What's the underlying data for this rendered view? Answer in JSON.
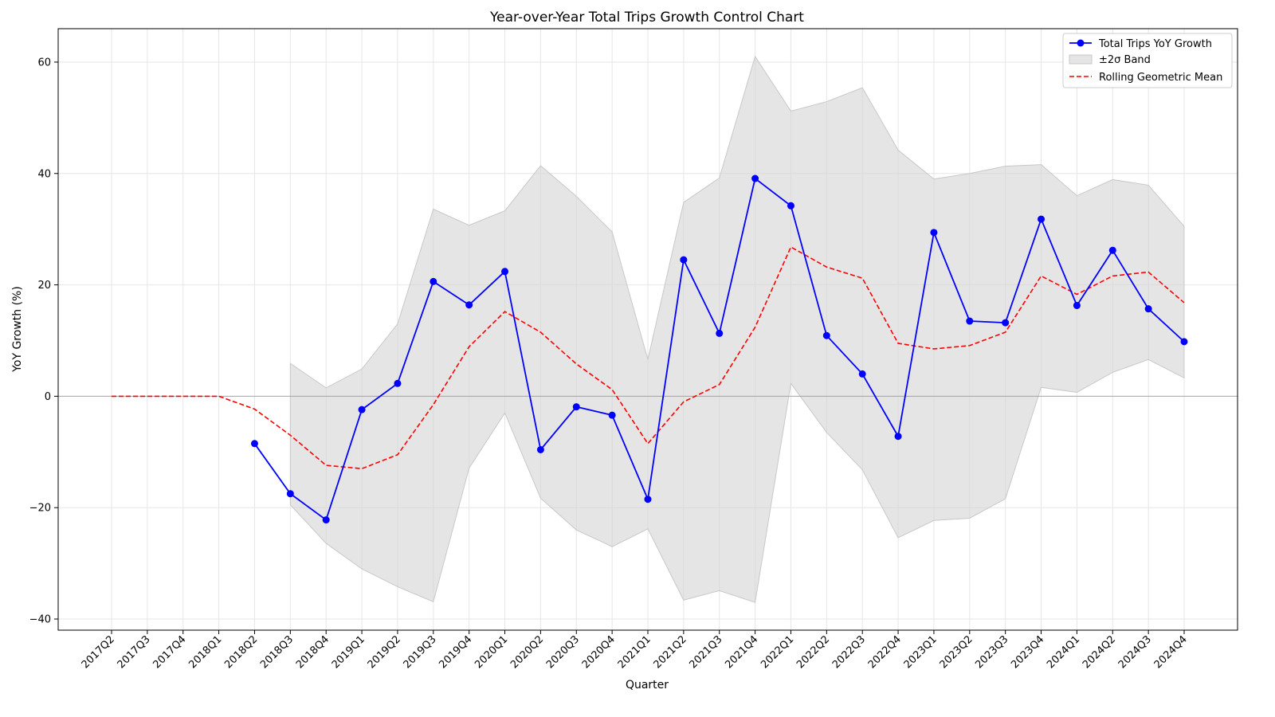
{
  "chart_data": {
    "type": "line",
    "title": "Year-over-Year Total Trips Growth Control Chart",
    "xlabel": "Quarter",
    "ylabel": "YoY Growth (%)",
    "ylim": [
      -42,
      66
    ],
    "yticks": [
      -40,
      -20,
      0,
      20,
      40,
      60
    ],
    "grid": true,
    "legend_position": "top-right",
    "categories": [
      "2017Q2",
      "2017Q3",
      "2017Q4",
      "2018Q1",
      "2018Q2",
      "2018Q3",
      "2018Q4",
      "2019Q1",
      "2019Q2",
      "2019Q3",
      "2019Q4",
      "2020Q1",
      "2020Q2",
      "2020Q3",
      "2020Q4",
      "2021Q1",
      "2021Q2",
      "2021Q3",
      "2021Q4",
      "2022Q1",
      "2022Q2",
      "2022Q3",
      "2022Q4",
      "2023Q1",
      "2023Q2",
      "2023Q3",
      "2023Q4",
      "2024Q1",
      "2024Q2",
      "2024Q3",
      "2024Q4"
    ],
    "series": [
      {
        "name": "Total Trips YoY Growth",
        "color": "#0000ff",
        "style": "solid-marker",
        "values": [
          null,
          null,
          null,
          null,
          -8.5,
          -17.5,
          -22.2,
          -2.4,
          2.3,
          20.6,
          16.4,
          22.4,
          -9.6,
          -1.9,
          -3.4,
          -18.5,
          24.5,
          11.3,
          39.1,
          34.2,
          10.9,
          4.0,
          -7.2,
          29.4,
          13.5,
          13.2,
          31.8,
          16.3,
          26.2,
          15.7,
          9.8
        ]
      },
      {
        "name": "Rolling Geometric Mean",
        "color": "#ff0000",
        "style": "dashed",
        "values": [
          0,
          0,
          0,
          0,
          -2.3,
          -7.0,
          -12.4,
          -13.0,
          -10.5,
          -1.5,
          8.9,
          15.2,
          11.5,
          5.8,
          1.2,
          -8.5,
          -1.0,
          2.1,
          12.4,
          26.8,
          23.2,
          21.2,
          9.5,
          8.5,
          9.1,
          11.5,
          21.6,
          18.3,
          21.6,
          22.3,
          16.8
        ]
      }
    ],
    "band": {
      "name": "±2σ Band",
      "color": "#d3d3d3",
      "upper": [
        null,
        null,
        null,
        null,
        null,
        5.9,
        1.5,
        4.9,
        13.0,
        33.6,
        30.7,
        33.3,
        41.4,
        35.9,
        29.5,
        6.6,
        34.8,
        39.2,
        61.0,
        51.2,
        52.9,
        55.4,
        44.2,
        39.0,
        40.0,
        41.3,
        41.6,
        36.0,
        38.9,
        37.9,
        30.5
      ],
      "lower": [
        null,
        null,
        null,
        null,
        null,
        -19.5,
        -26.4,
        -31.0,
        -34.2,
        -36.9,
        -12.9,
        -3.0,
        -18.3,
        -24.0,
        -27.0,
        -23.8,
        -36.6,
        -34.9,
        -37.0,
        2.3,
        -6.5,
        -13.2,
        -25.4,
        -22.3,
        -21.9,
        -18.4,
        1.6,
        0.7,
        4.3,
        6.6,
        3.3
      ]
    },
    "zero_line_color": "#999999"
  }
}
